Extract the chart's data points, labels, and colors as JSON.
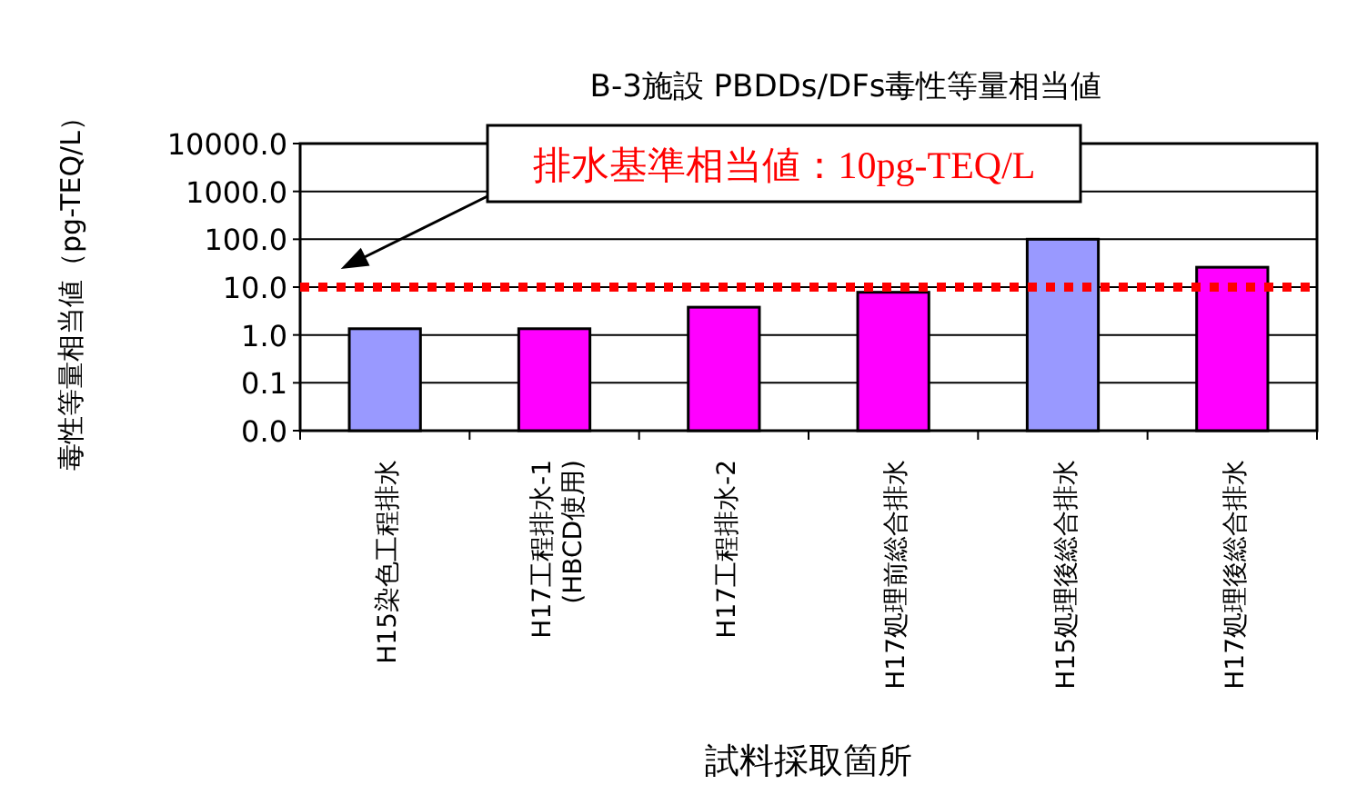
{
  "chart_data": {
    "type": "bar",
    "title": "B-3施設  PBDDs/DFs毒性等量相当値",
    "xlabel": "試料採取箇所",
    "ylabel": "毒性等量相当値（pg-TEQ/L）",
    "categories": [
      "H15染色工程排水",
      "H17工程排水-1\n(HBCD使用)",
      "H17工程排水-2",
      "H17処理前総合排水",
      "H15処理後総合排水",
      "H17処理後総合排水"
    ],
    "values": [
      1.35,
      1.35,
      3.8,
      7.8,
      100,
      26
    ],
    "colors": [
      "#9999ff",
      "#ff00ff",
      "#ff00ff",
      "#ff00ff",
      "#9999ff",
      "#ff00ff"
    ],
    "log": "y",
    "ylim": [
      0.01,
      10000
    ],
    "yticks": [
      {
        "value": 0.01,
        "label": "0.0"
      },
      0.1,
      {
        "value": 1,
        "label": "1.0"
      },
      {
        "value": 10,
        "label": "10.0"
      },
      {
        "value": 100,
        "label": "100.0"
      },
      {
        "value": 1000,
        "label": "1000.0"
      },
      {
        "value": 10000,
        "label": "10000.0"
      }
    ],
    "grid": "y",
    "ref_lines": [
      {
        "axis": "y",
        "value": 10,
        "label": "排水基準相当値：10pg-TEQ/L",
        "color": "#ff0000",
        "line_style": "dotted"
      }
    ]
  }
}
